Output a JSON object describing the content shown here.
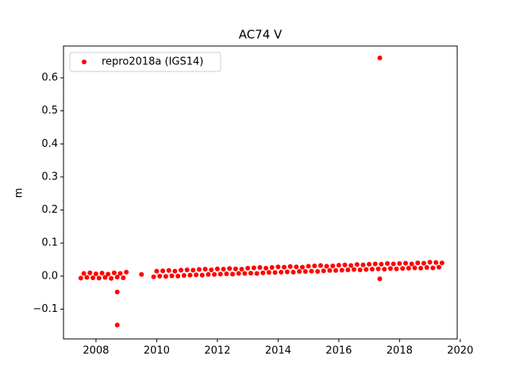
{
  "chart_data": {
    "type": "scatter",
    "title": "AC74 V",
    "y_label": "m",
    "xlim": [
      2006.93,
      2019.9
    ],
    "xticks": [
      2008,
      2010,
      2012,
      2014,
      2016,
      2018,
      2020
    ],
    "ylim": [
      -0.19,
      0.696
    ],
    "yticks": [
      {
        "value": -0.1,
        "label": "−0.1"
      },
      {
        "value": 0,
        "label": "0.0"
      },
      0.1,
      0.2,
      0.3,
      0.4,
      0.5,
      0.6
    ],
    "legend": "upper left",
    "series": [
      {
        "name": "repro2018a (IGS14)",
        "color": "#ff0000",
        "x": [
          2007.5,
          2007.6,
          2007.7,
          2007.8,
          2007.9,
          2008.0,
          2008.1,
          2008.2,
          2008.3,
          2008.4,
          2008.5,
          2008.6,
          2008.7,
          2008.8,
          2008.9,
          2009.0,
          2009.5,
          2009.9,
          2010.0,
          2010.1,
          2010.2,
          2010.3,
          2010.4,
          2010.5,
          2010.6,
          2010.7,
          2010.8,
          2010.9,
          2011.0,
          2011.1,
          2011.2,
          2011.3,
          2011.4,
          2011.5,
          2011.6,
          2011.7,
          2011.8,
          2011.9,
          2012.0,
          2012.1,
          2012.2,
          2012.3,
          2012.4,
          2012.5,
          2012.6,
          2012.7,
          2012.8,
          2012.9,
          2013.0,
          2013.1,
          2013.2,
          2013.3,
          2013.4,
          2013.5,
          2013.6,
          2013.7,
          2013.8,
          2013.9,
          2014.0,
          2014.1,
          2014.2,
          2014.3,
          2014.4,
          2014.5,
          2014.6,
          2014.7,
          2014.8,
          2014.9,
          2015.0,
          2015.1,
          2015.2,
          2015.3,
          2015.4,
          2015.5,
          2015.6,
          2015.7,
          2015.8,
          2015.9,
          2016.0,
          2016.1,
          2016.2,
          2016.3,
          2016.4,
          2016.5,
          2016.6,
          2016.7,
          2016.8,
          2016.9,
          2017.0,
          2017.1,
          2017.2,
          2017.3,
          2017.4,
          2017.5,
          2017.6,
          2017.7,
          2017.8,
          2017.9,
          2018.0,
          2018.1,
          2018.2,
          2018.3,
          2018.4,
          2018.5,
          2018.6,
          2018.7,
          2018.8,
          2018.9,
          2019.0,
          2019.1,
          2019.2,
          2019.3,
          2019.4,
          2008.7,
          2008.7,
          2017.35,
          2017.35
        ],
        "values": [
          -0.006,
          0.008,
          -0.004,
          0.01,
          -0.005,
          0.007,
          -0.006,
          0.009,
          -0.004,
          0.006,
          -0.007,
          0.01,
          -0.003,
          0.008,
          -0.005,
          0.012,
          0.005,
          -0.002,
          0.015,
          0.0,
          0.016,
          -0.001,
          0.017,
          0.001,
          0.015,
          0.0,
          0.018,
          0.002,
          0.019,
          0.003,
          0.018,
          0.004,
          0.02,
          0.003,
          0.021,
          0.005,
          0.019,
          0.005,
          0.022,
          0.006,
          0.021,
          0.007,
          0.023,
          0.006,
          0.022,
          0.008,
          0.021,
          0.008,
          0.024,
          0.009,
          0.025,
          0.008,
          0.026,
          0.01,
          0.024,
          0.011,
          0.026,
          0.011,
          0.028,
          0.012,
          0.027,
          0.013,
          0.029,
          0.012,
          0.028,
          0.014,
          0.027,
          0.014,
          0.03,
          0.015,
          0.031,
          0.014,
          0.032,
          0.016,
          0.03,
          0.017,
          0.031,
          0.017,
          0.033,
          0.018,
          0.034,
          0.019,
          0.032,
          0.02,
          0.035,
          0.019,
          0.034,
          0.02,
          0.036,
          0.021,
          0.037,
          0.022,
          0.036,
          0.021,
          0.038,
          0.023,
          0.037,
          0.022,
          0.038,
          0.023,
          0.039,
          0.024,
          0.037,
          0.025,
          0.04,
          0.024,
          0.039,
          0.026,
          0.042,
          0.025,
          0.041,
          0.027,
          0.04,
          -0.048,
          -0.148,
          0.66,
          -0.008
        ]
      }
    ]
  }
}
